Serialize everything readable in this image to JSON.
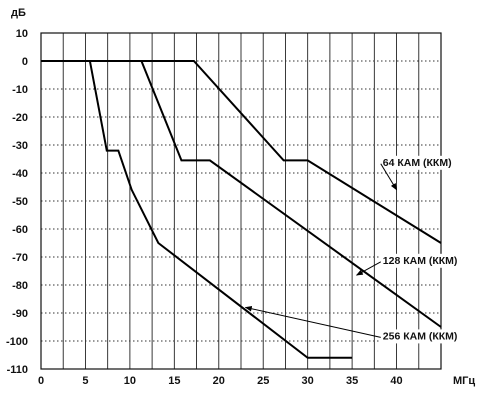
{
  "chart_data": {
    "type": "line",
    "title": "",
    "ylabel": "дБ",
    "xlabel": "МГц",
    "xlim": [
      0,
      45
    ],
    "ylim": [
      -110,
      10
    ],
    "xticks": [
      0,
      5,
      10,
      15,
      20,
      25,
      30,
      35,
      40
    ],
    "yticks": [
      10,
      0,
      -10,
      -20,
      -30,
      -40,
      -50,
      -60,
      -70,
      -80,
      -90,
      -100,
      -110
    ],
    "grid": true,
    "series": [
      {
        "name": "64 КАМ (ККМ)",
        "points": [
          [
            0,
            0
          ],
          [
            17.2,
            0
          ],
          [
            27.3,
            -35.5
          ],
          [
            30,
            -35.5
          ],
          [
            45,
            -65
          ]
        ]
      },
      {
        "name": "128 КАМ (ККМ)",
        "points": [
          [
            0,
            0
          ],
          [
            11.3,
            0
          ],
          [
            15.8,
            -35.5
          ],
          [
            19,
            -35.5
          ],
          [
            45,
            -95
          ]
        ]
      },
      {
        "name": "256 КАМ (ККМ)",
        "points": [
          [
            0,
            0
          ],
          [
            5.5,
            0
          ],
          [
            7.4,
            -32
          ],
          [
            8.7,
            -32
          ],
          [
            10.2,
            -46
          ],
          [
            13.2,
            -65
          ],
          [
            30,
            -106
          ],
          [
            35,
            -106
          ]
        ]
      }
    ],
    "annotations": [
      {
        "label": "64 КАМ (ККМ)",
        "series": 0,
        "text_at": [
          38,
          -36
        ],
        "point_at": [
          40,
          -46
        ]
      },
      {
        "label": "128 КАМ (ККМ)",
        "series": 1,
        "text_at": [
          38,
          -71
        ],
        "point_at": [
          35.5,
          -76.5
        ]
      },
      {
        "label": "256 КАМ (ККМ)",
        "series": 2,
        "text_at": [
          38,
          -98
        ],
        "point_at": [
          23,
          -88
        ]
      }
    ]
  }
}
